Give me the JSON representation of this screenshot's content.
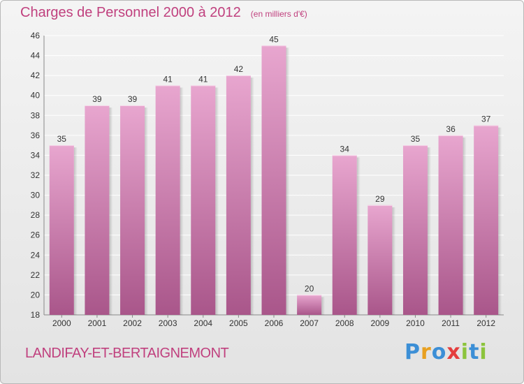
{
  "title": "Charges de Personnel 2000 à 2012",
  "unit_note": "(en milliers d'€)",
  "commune": "LANDIFAY-ET-BERTAIGNEMONT",
  "logo": {
    "letters": [
      "P",
      "r",
      "o",
      "x",
      "i",
      "t",
      "i"
    ],
    "colors": [
      "#3c8fd6",
      "#e8a020",
      "#3c8fd6",
      "#e43d3d",
      "#8cc43c",
      "#3c8fd6",
      "#8cc43c"
    ]
  },
  "colors": {
    "bar_top": "#e8a6cf",
    "bar_bottom": "#a9568a",
    "accent": "#c0407e"
  },
  "chart_data": {
    "type": "bar",
    "categories": [
      "2000",
      "2001",
      "2002",
      "2003",
      "2004",
      "2005",
      "2006",
      "2007",
      "2008",
      "2009",
      "2010",
      "2011",
      "2012"
    ],
    "values": [
      35,
      39,
      39,
      41,
      41,
      42,
      45,
      20,
      34,
      29,
      35,
      36,
      37
    ],
    "ylim": [
      18,
      46
    ],
    "yticks": [
      18,
      20,
      22,
      24,
      26,
      28,
      30,
      32,
      34,
      36,
      38,
      40,
      42,
      44,
      46
    ],
    "grid": true
  }
}
